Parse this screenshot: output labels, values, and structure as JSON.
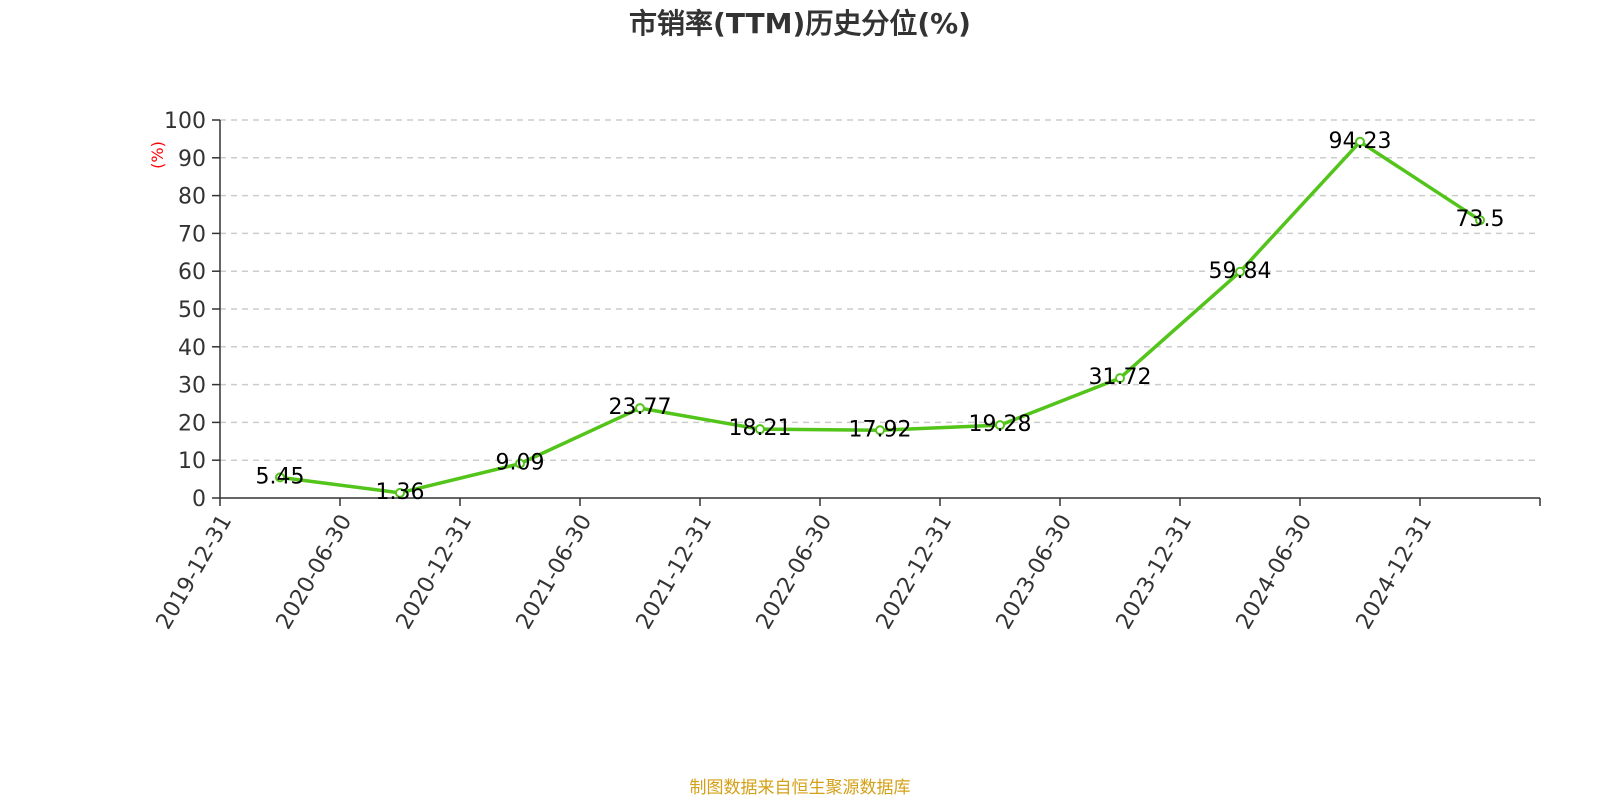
{
  "chart_data": {
    "type": "line",
    "title": "市销率(TTM)历史分位(%)",
    "ylabel": "(%)",
    "xlabel": "",
    "categories": [
      "2019-12-31",
      "2020-06-30",
      "2020-12-31",
      "2021-06-30",
      "2021-12-31",
      "2022-06-30",
      "2022-12-31",
      "2023-06-30",
      "2023-12-31",
      "2024-06-30",
      "2024-12-31"
    ],
    "series": [
      {
        "values": [
          5.45,
          1.36,
          9.09,
          23.77,
          18.21,
          17.92,
          19.28,
          31.72,
          59.84,
          94.23,
          73.5
        ],
        "labels": [
          "5.45",
          "1.36",
          "9.09",
          "23.77",
          "18.21",
          "17.92",
          "19.28",
          "31.72",
          "59.84",
          "94.23",
          "73.5"
        ],
        "color": "#52c41a"
      }
    ],
    "ylim": [
      0,
      100
    ],
    "yticks": [
      "0",
      "10",
      "20",
      "30",
      "40",
      "50",
      "60",
      "70",
      "80",
      "90",
      "100"
    ],
    "grid": true,
    "legend": "none",
    "unit_color": "#ff0000"
  },
  "source": "制图数据来自恒生聚源数据库",
  "source_color": "#d4a017"
}
